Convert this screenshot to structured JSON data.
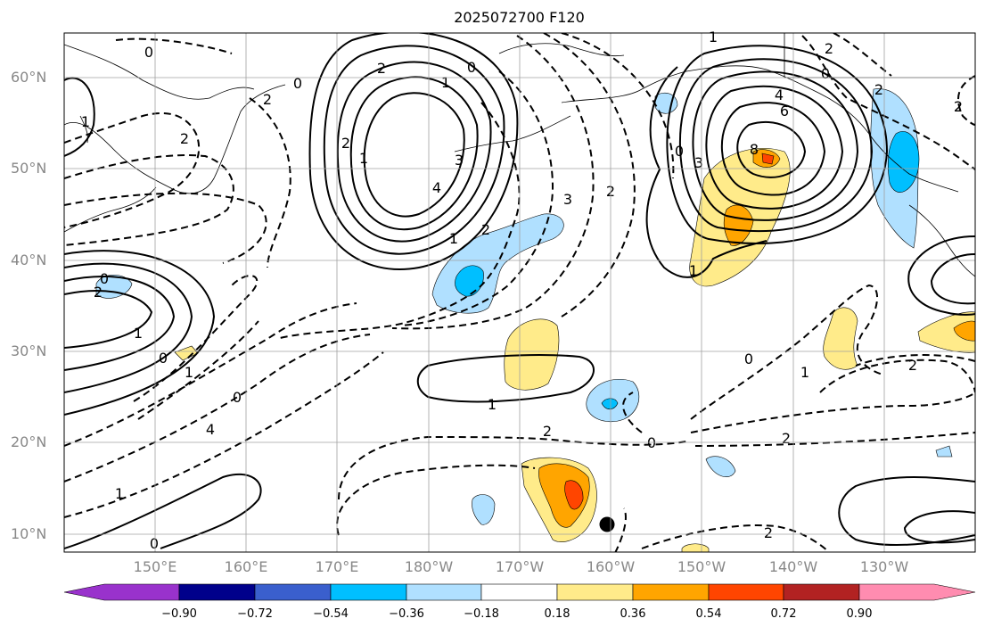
{
  "title": "2025072700 F120",
  "lat_labels": [
    "60°N",
    "50°N",
    "40°N",
    "30°N",
    "20°N",
    "10°N"
  ],
  "lon_labels": [
    "150°E",
    "160°E",
    "170°E",
    "180°W",
    "170°W",
    "160°W",
    "150°W",
    "140°W",
    "130°W"
  ],
  "contour_labels": [
    {
      "id": "c1",
      "text": "0"
    },
    {
      "id": "c2",
      "text": "2"
    },
    {
      "id": "c3",
      "text": "1"
    },
    {
      "id": "c4",
      "text": "0"
    },
    {
      "id": "c5",
      "text": "2"
    },
    {
      "id": "c6",
      "text": "1"
    },
    {
      "id": "c7",
      "text": "2"
    },
    {
      "id": "c8",
      "text": "3"
    },
    {
      "id": "c9",
      "text": "4"
    },
    {
      "id": "c10",
      "text": "1"
    },
    {
      "id": "c11",
      "text": "2"
    },
    {
      "id": "c12",
      "text": "3"
    },
    {
      "id": "c13",
      "text": "2"
    },
    {
      "id": "c14",
      "text": "1"
    },
    {
      "id": "c15",
      "text": "0"
    },
    {
      "id": "c16",
      "text": "2"
    },
    {
      "id": "c17",
      "text": "4"
    },
    {
      "id": "c18",
      "text": "6"
    },
    {
      "id": "c19",
      "text": "8"
    },
    {
      "id": "c20",
      "text": "3"
    },
    {
      "id": "c21",
      "text": "1"
    },
    {
      "id": "c22",
      "text": "2"
    },
    {
      "id": "c23",
      "text": "0"
    },
    {
      "id": "c24",
      "text": "1"
    },
    {
      "id": "c25",
      "text": "2"
    },
    {
      "id": "c26",
      "text": "0"
    },
    {
      "id": "c27",
      "text": "2"
    },
    {
      "id": "c28",
      "text": "0"
    },
    {
      "id": "c29",
      "text": "2"
    },
    {
      "id": "c30",
      "text": "1"
    },
    {
      "id": "c31",
      "text": "0"
    },
    {
      "id": "c32",
      "text": "1"
    },
    {
      "id": "c33",
      "text": "0"
    },
    {
      "id": "c34",
      "text": "4"
    },
    {
      "id": "c35",
      "text": "1"
    },
    {
      "id": "c36",
      "text": "0"
    },
    {
      "id": "c37",
      "text": "1"
    },
    {
      "id": "c38",
      "text": "2"
    },
    {
      "id": "c39",
      "text": "0"
    },
    {
      "id": "c40",
      "text": "2"
    },
    {
      "id": "c41",
      "text": "0"
    },
    {
      "id": "c42",
      "text": "1"
    },
    {
      "id": "c43",
      "text": "2"
    },
    {
      "id": "c44",
      "text": "2"
    }
  ],
  "colorbar": {
    "ticks": [
      "−0.90",
      "−0.72",
      "−0.54",
      "−0.36",
      "−0.18",
      "0.18",
      "0.36",
      "0.54",
      "0.72",
      "0.90"
    ],
    "colors": [
      "#9932cc",
      "#00008b",
      "#3a5fcd",
      "#00bfff",
      "#b0e0ff",
      "#ffffff",
      "#ffeb8a",
      "#ffa500",
      "#ff4500",
      "#b22222",
      "#ff8cb0"
    ]
  },
  "marker": {
    "symbol": "black-dot"
  }
}
